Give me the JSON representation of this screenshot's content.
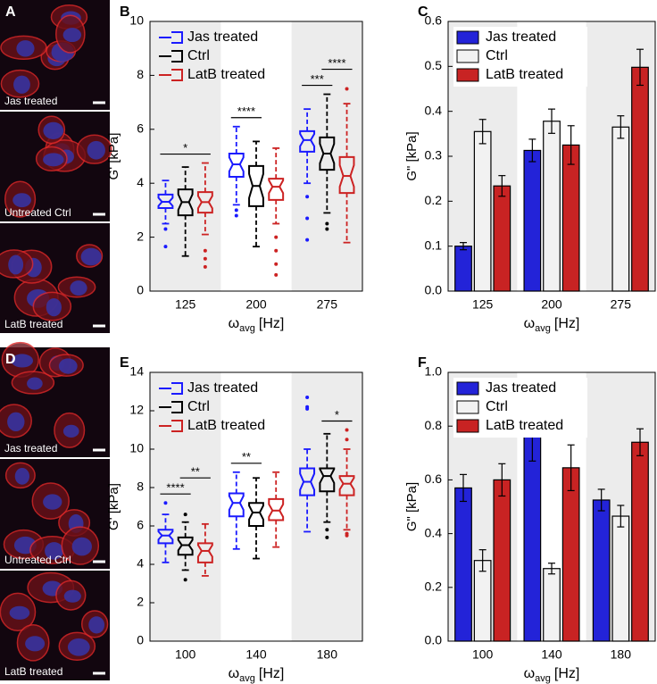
{
  "images": [
    {
      "panel": "A",
      "labels": [
        "Jas treated",
        "Untreated Ctrl",
        "LatB treated"
      ]
    },
    {
      "panel": "D",
      "labels": [
        "Jas treated",
        "Untreated Ctrl",
        "LatB treated"
      ]
    }
  ],
  "chart_data": [
    {
      "type": "box",
      "panel": "B",
      "ylabel": "G' [kPa]",
      "xlabel": {
        "symbol": "ω",
        "subscript": "avg",
        "unit": "[Hz]"
      },
      "categories": [
        "125",
        "200",
        "275"
      ],
      "ylim": [
        0,
        10
      ],
      "yticks": [
        0,
        2,
        4,
        6,
        8,
        10
      ],
      "legend": "upper left",
      "grid": false,
      "series": [
        {
          "name": "Jas treated",
          "color": "#1a1aff",
          "boxes": [
            {
              "low": 2.5,
              "q1": 3.08,
              "median": 3.31,
              "q3": 3.58,
              "high": 4.1,
              "outliers": [
                2.3,
                1.65
              ]
            },
            {
              "low": 3.2,
              "q1": 4.24,
              "median": 4.7,
              "q3": 5.1,
              "high": 6.1,
              "outliers": [
                3.0,
                2.8
              ]
            },
            {
              "low": 4.0,
              "q1": 5.17,
              "median": 5.6,
              "q3": 5.93,
              "high": 6.75,
              "outliers": [
                3.5,
                2.7,
                1.9
              ]
            }
          ]
        },
        {
          "name": "Ctrl",
          "color": "#000000",
          "boxes": [
            {
              "low": 1.3,
              "q1": 2.81,
              "median": 3.3,
              "q3": 3.77,
              "high": 4.6,
              "outliers": []
            },
            {
              "low": 1.65,
              "q1": 3.15,
              "median": 3.9,
              "q3": 4.64,
              "high": 5.55,
              "outliers": []
            },
            {
              "low": 2.9,
              "q1": 4.5,
              "median": 5.1,
              "q3": 5.7,
              "high": 7.3,
              "outliers": [
                2.5,
                2.3
              ]
            }
          ]
        },
        {
          "name": "LatB treated",
          "color": "#cc2222",
          "boxes": [
            {
              "low": 2.1,
              "q1": 2.91,
              "median": 3.3,
              "q3": 3.67,
              "high": 4.75,
              "outliers": [
                1.5,
                1.2,
                0.9
              ]
            },
            {
              "low": 2.5,
              "q1": 3.38,
              "median": 3.87,
              "q3": 4.17,
              "high": 5.3,
              "outliers": [
                2.0,
                1.5,
                1.0,
                0.6
              ]
            },
            {
              "low": 1.8,
              "q1": 3.64,
              "median": 4.27,
              "q3": 4.97,
              "high": 6.95,
              "outliers": [
                7.5
              ]
            }
          ]
        }
      ],
      "significance": [
        {
          "text": "*",
          "category": 0,
          "from": 0,
          "to": 2
        },
        {
          "text": "****",
          "category": 1,
          "from": 0,
          "to": 1
        },
        {
          "text": "***",
          "category": 2,
          "from": 0,
          "to": 1
        },
        {
          "text": "****",
          "category": 2,
          "from": 1,
          "to": 2
        }
      ]
    },
    {
      "type": "bar",
      "panel": "C",
      "ylabel": "G\" [kPa]",
      "xlabel": {
        "symbol": "ω",
        "subscript": "avg",
        "unit": "[Hz]"
      },
      "categories": [
        "125",
        "200",
        "275"
      ],
      "ylim": [
        0,
        0.6
      ],
      "yticks": [
        {
          "value": 0,
          "label": "0.0"
        },
        0.1,
        0.2,
        0.3,
        0.4,
        0.5,
        0.6
      ],
      "legend": "upper left",
      "grid": false,
      "series": [
        {
          "name": "Jas treated",
          "color": "#2323d8",
          "values": [
            0.1,
            0.313,
            null
          ],
          "errors": [
            0.008,
            0.025,
            null
          ]
        },
        {
          "name": "Ctrl",
          "color": "#f2f2f2",
          "values": [
            0.355,
            0.378,
            0.365
          ],
          "errors": [
            0.027,
            0.027,
            0.025
          ]
        },
        {
          "name": "LatB treated",
          "color": "#c82323",
          "values": [
            0.234,
            0.325,
            0.498
          ],
          "errors": [
            0.023,
            0.043,
            0.04
          ]
        }
      ]
    },
    {
      "type": "box",
      "panel": "E",
      "ylabel": "G' [kPa]",
      "xlabel": {
        "symbol": "ω",
        "subscript": "avg",
        "unit": "[Hz]"
      },
      "categories": [
        "100",
        "140",
        "180"
      ],
      "ylim": [
        0,
        14
      ],
      "yticks": [
        0,
        2,
        4,
        6,
        8,
        10,
        12,
        14
      ],
      "legend": "upper left",
      "grid": false,
      "series": [
        {
          "name": "Jas treated",
          "color": "#1a1aff",
          "boxes": [
            {
              "low": 4.1,
              "q1": 5.1,
              "median": 5.5,
              "q3": 5.8,
              "high": 6.6,
              "outliers": [
                7.2
              ]
            },
            {
              "low": 4.8,
              "q1": 6.5,
              "median": 7.2,
              "q3": 7.7,
              "high": 8.8,
              "outliers": []
            },
            {
              "low": 5.7,
              "q1": 7.6,
              "median": 8.3,
              "q3": 9.0,
              "high": 10.0,
              "outliers": [
                12.7,
                12.2,
                12.1
              ]
            }
          ]
        },
        {
          "name": "Ctrl",
          "color": "#000000",
          "boxes": [
            {
              "low": 3.7,
              "q1": 4.5,
              "median": 5.0,
              "q3": 5.4,
              "high": 6.2,
              "outliers": [
                6.6,
                3.2
              ]
            },
            {
              "low": 4.3,
              "q1": 6.0,
              "median": 6.7,
              "q3": 7.2,
              "high": 8.5,
              "outliers": []
            },
            {
              "low": 6.2,
              "q1": 7.8,
              "median": 8.6,
              "q3": 9.0,
              "high": 10.8,
              "outliers": [
                5.8,
                5.4
              ]
            }
          ]
        },
        {
          "name": "LatB treated",
          "color": "#cc2222",
          "boxes": [
            {
              "low": 3.4,
              "q1": 4.1,
              "median": 4.7,
              "q3": 5.1,
              "high": 6.1,
              "outliers": []
            },
            {
              "low": 4.9,
              "q1": 6.3,
              "median": 6.8,
              "q3": 7.4,
              "high": 8.8,
              "outliers": []
            },
            {
              "low": 5.8,
              "q1": 7.6,
              "median": 8.2,
              "q3": 8.6,
              "high": 10.0,
              "outliers": [
                11.0,
                10.5,
                5.6,
                5.5
              ]
            }
          ]
        }
      ],
      "significance": [
        {
          "text": "****",
          "category": 0,
          "from": 0,
          "to": 1
        },
        {
          "text": "**",
          "category": 0,
          "from": 1,
          "to": 2
        },
        {
          "text": "**",
          "category": 1,
          "from": 0,
          "to": 1
        },
        {
          "text": "*",
          "category": 2,
          "from": 1,
          "to": 2
        }
      ]
    },
    {
      "type": "bar",
      "panel": "F",
      "ylabel": "G\" [kPa]",
      "xlabel": {
        "symbol": "ω",
        "subscript": "avg",
        "unit": "[Hz]"
      },
      "categories": [
        "100",
        "140",
        "180"
      ],
      "ylim": [
        0,
        1
      ],
      "yticks": [
        {
          "value": 0,
          "label": "0.0"
        },
        0.2,
        0.4,
        0.6,
        0.8,
        {
          "value": 1,
          "label": "1.0"
        }
      ],
      "legend": "upper left",
      "grid": false,
      "series": [
        {
          "name": "Jas treated",
          "color": "#2323d8",
          "values": [
            0.57,
            0.76,
            0.525
          ],
          "errors": [
            0.05,
            0.09,
            0.04
          ]
        },
        {
          "name": "Ctrl",
          "color": "#f2f2f2",
          "values": [
            0.3,
            0.27,
            0.465
          ],
          "errors": [
            0.04,
            0.02,
            0.04
          ]
        },
        {
          "name": "LatB treated",
          "color": "#c82323",
          "values": [
            0.6,
            0.645,
            0.74
          ],
          "errors": [
            0.06,
            0.085,
            0.05
          ]
        }
      ]
    }
  ]
}
